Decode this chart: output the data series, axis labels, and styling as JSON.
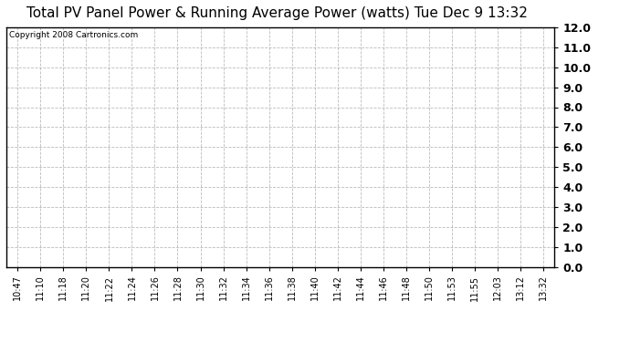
{
  "title": "Total PV Panel Power & Running Average Power (watts) Tue Dec 9 13:32",
  "copyright_text": "Copyright 2008 Cartronics.com",
  "x_labels": [
    "10:47",
    "11:10",
    "11:18",
    "11:20",
    "11:22",
    "11:24",
    "11:26",
    "11:28",
    "11:30",
    "11:32",
    "11:34",
    "11:36",
    "11:38",
    "11:40",
    "11:42",
    "11:44",
    "11:46",
    "11:48",
    "11:50",
    "11:53",
    "11:55",
    "12:03",
    "13:12",
    "13:32"
  ],
  "y_min": 0.0,
  "y_max": 12.0,
  "y_ticks": [
    0.0,
    1.0,
    2.0,
    3.0,
    4.0,
    5.0,
    6.0,
    7.0,
    8.0,
    9.0,
    10.0,
    11.0,
    12.0
  ],
  "background_color": "#ffffff",
  "grid_color": "#aaaaaa",
  "title_fontsize": 11,
  "copyright_fontsize": 6.5,
  "tick_fontsize": 7,
  "ytick_fontsize": 9,
  "border_color": "#000000"
}
